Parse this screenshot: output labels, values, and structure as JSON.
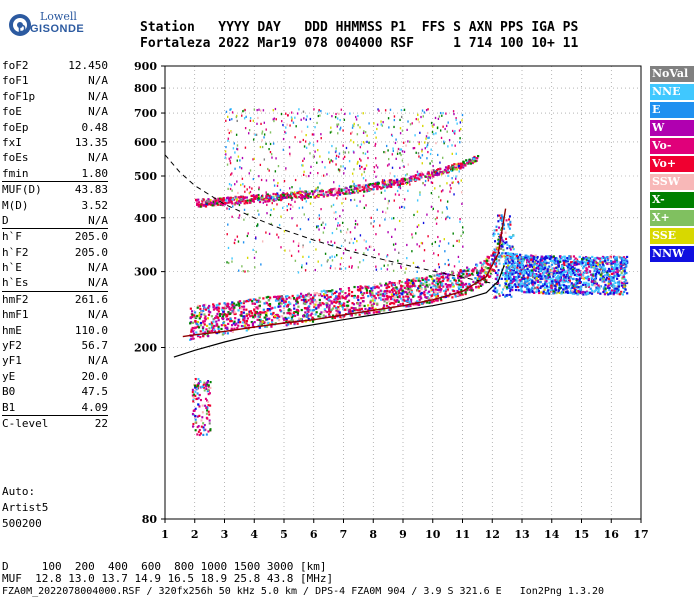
{
  "logo": {
    "line1": "Lowell",
    "line2": "DIGISONDE"
  },
  "header": {
    "line1": "Station   YYYY DAY   DDD HHMMSS P1  FFS S AXN PPS IGA PS",
    "line2": "Fortaleza 2022 Mar19 078 004000 RSF     1 714 100 10+ 11"
  },
  "params": [
    {
      "k": "foF2",
      "v": "12.450"
    },
    {
      "k": "foF1",
      "v": "N/A"
    },
    {
      "k": "foF1p",
      "v": "N/A"
    },
    {
      "k": "foE",
      "v": "N/A"
    },
    {
      "k": "foEp",
      "v": "0.48"
    },
    {
      "k": "fxI",
      "v": "13.35"
    },
    {
      "k": "foEs",
      "v": "N/A"
    },
    {
      "k": "fmin",
      "v": "1.80"
    },
    {
      "k": "MUF(D)",
      "v": "43.83",
      "sep": true
    },
    {
      "k": "M(D)",
      "v": "3.52"
    },
    {
      "k": "D",
      "v": "N/A"
    },
    {
      "k": "h`F",
      "v": "205.0",
      "sep": true
    },
    {
      "k": "h`F2",
      "v": "205.0"
    },
    {
      "k": "h`E",
      "v": "N/A"
    },
    {
      "k": "h`Es",
      "v": "N/A"
    },
    {
      "k": "hmF2",
      "v": "261.6",
      "sep": true
    },
    {
      "k": "hmF1",
      "v": "N/A"
    },
    {
      "k": "hmE",
      "v": "110.0"
    },
    {
      "k": "yF2",
      "v": "56.7"
    },
    {
      "k": "yF1",
      "v": "N/A"
    },
    {
      "k": "yE",
      "v": "20.0"
    },
    {
      "k": "B0",
      "v": "47.5"
    },
    {
      "k": "B1",
      "v": "4.09"
    },
    {
      "k": "C-level",
      "v": "22",
      "sep": true
    }
  ],
  "auto": [
    "Auto:",
    "Artist5",
    "500200"
  ],
  "legend": [
    {
      "label": "NoVal",
      "color": "#808080"
    },
    {
      "label": "NNE",
      "color": "#40c8ff"
    },
    {
      "label": "E",
      "color": "#2090f0"
    },
    {
      "label": "W",
      "color": "#b000b0"
    },
    {
      "label": "Vo-",
      "color": "#e0007a"
    },
    {
      "label": "Vo+",
      "color": "#f00030"
    },
    {
      "label": "SSW",
      "color": "#f8b8b8"
    },
    {
      "label": "X-",
      "color": "#008000"
    },
    {
      "label": "X+",
      "color": "#80c060"
    },
    {
      "label": "SSE",
      "color": "#d8d800"
    },
    {
      "label": "NNW",
      "color": "#1010e0"
    }
  ],
  "footer": {
    "line1": "D     100  200  400  600  800 1000 1500 3000 [km]",
    "line2": "MUF  12.8 13.0 13.7 14.9 16.5 18.9 25.8 43.8 [MHz]",
    "line3": "FZA0M_2022078004000.RSF / 320fx256h 50 kHz 5.0 km / DPS-4 FZA0M 904 / 3.9 S 321.6 E   Ion2Png 1.3.20"
  },
  "chart_data": {
    "type": "scatter",
    "title": "Fortaleza 2022 Mar19 078 004000",
    "xlabel": "",
    "ylabel": "",
    "xlim": [
      1,
      17
    ],
    "ylim": [
      80,
      900
    ],
    "x_ticks": [
      1,
      2,
      3,
      4,
      5,
      6,
      7,
      8,
      9,
      10,
      11,
      12,
      13,
      14,
      15,
      16,
      17
    ],
    "y_ticks": [
      80,
      200,
      300,
      400,
      500,
      600,
      700,
      800,
      900
    ],
    "grid": true,
    "profile_curve": {
      "x": [
        1.3,
        2,
        3,
        4,
        5,
        6,
        7,
        8,
        9,
        10,
        11,
        11.8,
        12.2,
        12.4
      ],
      "y": [
        190,
        197,
        206,
        214,
        220,
        226,
        232,
        238,
        244,
        250,
        258,
        268,
        285,
        310
      ]
    },
    "trace_curve": {
      "x": [
        1.6,
        2,
        3,
        4,
        5,
        6,
        7,
        8,
        9,
        10,
        11,
        11.8,
        12.2,
        12.45
      ],
      "y": [
        212,
        214,
        218,
        223,
        228,
        232,
        238,
        244,
        250,
        258,
        270,
        292,
        330,
        420
      ]
    },
    "dashed_curve": {
      "x": [
        1,
        1.5,
        2,
        3,
        4,
        5,
        6,
        7,
        8,
        9,
        10,
        11,
        12.2
      ],
      "y": [
        560,
        510,
        475,
        430,
        400,
        375,
        355,
        338,
        324,
        312,
        301,
        291,
        280
      ]
    },
    "series": [
      {
        "name": "F2 O-trace",
        "x": [
          1.8,
          2,
          3,
          4,
          5,
          6,
          7,
          8,
          9,
          10,
          11,
          11.5,
          12,
          12.3
        ],
        "y": [
          215,
          218,
          222,
          228,
          232,
          237,
          242,
          248,
          255,
          262,
          272,
          282,
          300,
          350
        ]
      },
      {
        "name": "Multiple echo",
        "x": [
          2,
          3,
          4,
          5,
          6,
          7,
          8,
          9,
          10,
          11,
          11.5
        ],
        "y": [
          430,
          434,
          440,
          446,
          452,
          460,
          470,
          485,
          505,
          530,
          550
        ]
      },
      {
        "name": "Spread F",
        "x": [
          12.4,
          13,
          13.5,
          14,
          14.5,
          15,
          15.5,
          16,
          16.5
        ],
        "y": [
          290,
          285,
          284,
          283,
          283,
          282,
          282,
          282,
          282
        ]
      }
    ]
  }
}
